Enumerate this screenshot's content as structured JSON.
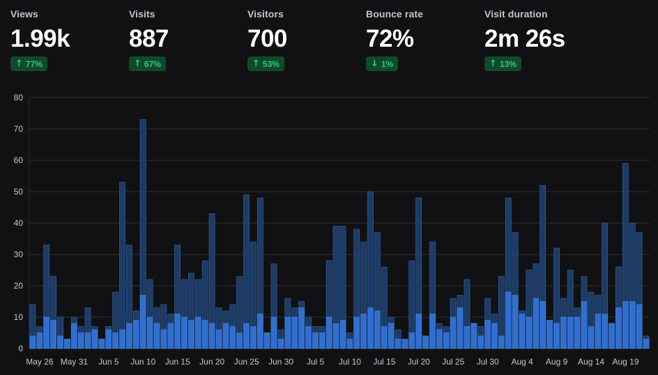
{
  "stats": [
    {
      "label": "Views",
      "value": "1.99k",
      "change": "77%",
      "direction": "up",
      "arrow_icon": "arrow-up-icon"
    },
    {
      "label": "Visits",
      "value": "887",
      "change": "67%",
      "direction": "up",
      "arrow_icon": "arrow-up-icon"
    },
    {
      "label": "Visitors",
      "value": "700",
      "change": "53%",
      "direction": "up",
      "arrow_icon": "arrow-up-icon"
    },
    {
      "label": "Bounce rate",
      "value": "72%",
      "change": "1%",
      "direction": "down",
      "arrow_icon": "arrow-down-icon"
    },
    {
      "label": "Visit duration",
      "value": "2m 26s",
      "change": "13%",
      "direction": "up",
      "arrow_icon": "arrow-up-icon"
    }
  ],
  "colors": {
    "background": "#111113",
    "badge_bg": "#0f4a2b",
    "badge_text": "#35c97a",
    "views_bar": "#1d3b66",
    "visitors_bar": "#2f6fd2",
    "grid": "#2e2e33"
  },
  "chart_data": {
    "type": "bar",
    "stacked": false,
    "ylim": [
      0,
      80
    ],
    "yticks": [
      0,
      10,
      20,
      30,
      40,
      50,
      60,
      70,
      80
    ],
    "grid": true,
    "x_tick_labels": [
      {
        "label": "May 26",
        "index": 0
      },
      {
        "label": "May 31",
        "index": 5
      },
      {
        "label": "Jun 5",
        "index": 10
      },
      {
        "label": "Jun 10",
        "index": 15
      },
      {
        "label": "Jun 15",
        "index": 20
      },
      {
        "label": "Jun 20",
        "index": 25
      },
      {
        "label": "Jun 25",
        "index": 30
      },
      {
        "label": "Jun 30",
        "index": 35
      },
      {
        "label": "Jul 5",
        "index": 40
      },
      {
        "label": "Jul 10",
        "index": 45
      },
      {
        "label": "Jul 15",
        "index": 50
      },
      {
        "label": "Jul 20",
        "index": 55
      },
      {
        "label": "Jul 25",
        "index": 60
      },
      {
        "label": "Jul 30",
        "index": 65
      },
      {
        "label": "Aug 4",
        "index": 70
      },
      {
        "label": "Aug 9",
        "index": 75
      },
      {
        "label": "Aug 14",
        "index": 80
      },
      {
        "label": "Aug 19",
        "index": 85
      }
    ],
    "series": [
      {
        "values": [
          14,
          7,
          33,
          23,
          10,
          3,
          10,
          7,
          13,
          7,
          3,
          7,
          18,
          53,
          33,
          12,
          73,
          22,
          13,
          14,
          11,
          33,
          22,
          24,
          22,
          28,
          43,
          13,
          12,
          14,
          23,
          49,
          34,
          48,
          5,
          27,
          6,
          16,
          13,
          15,
          10,
          7,
          7,
          28,
          39,
          39,
          5,
          38,
          34,
          50,
          37,
          26,
          10,
          6,
          3,
          28,
          48,
          4,
          34,
          8,
          7,
          16,
          17,
          22,
          8,
          7,
          16,
          11,
          23,
          48,
          37,
          12,
          25,
          27,
          52,
          9,
          32,
          16,
          25,
          13,
          23,
          18,
          17,
          40,
          8,
          26,
          59,
          40,
          37,
          4
        ]
      },
      {
        "values": [
          4,
          5,
          10,
          9,
          4,
          3,
          8,
          5,
          5,
          6,
          3,
          6,
          5,
          6,
          8,
          9,
          17,
          10,
          8,
          6,
          8,
          11,
          10,
          9,
          10,
          9,
          8,
          6,
          8,
          7,
          5,
          8,
          7,
          11,
          5,
          10,
          3,
          10,
          10,
          13,
          7,
          5,
          5,
          10,
          8,
          9,
          3,
          10,
          11,
          13,
          12,
          7,
          8,
          3,
          3,
          5,
          11,
          4,
          11,
          6,
          5,
          10,
          13,
          7,
          8,
          4,
          9,
          8,
          4,
          18,
          17,
          11,
          10,
          16,
          15,
          9,
          8,
          10,
          10,
          10,
          15,
          7,
          11,
          11,
          8,
          13,
          15,
          15,
          14,
          3
        ]
      }
    ]
  }
}
